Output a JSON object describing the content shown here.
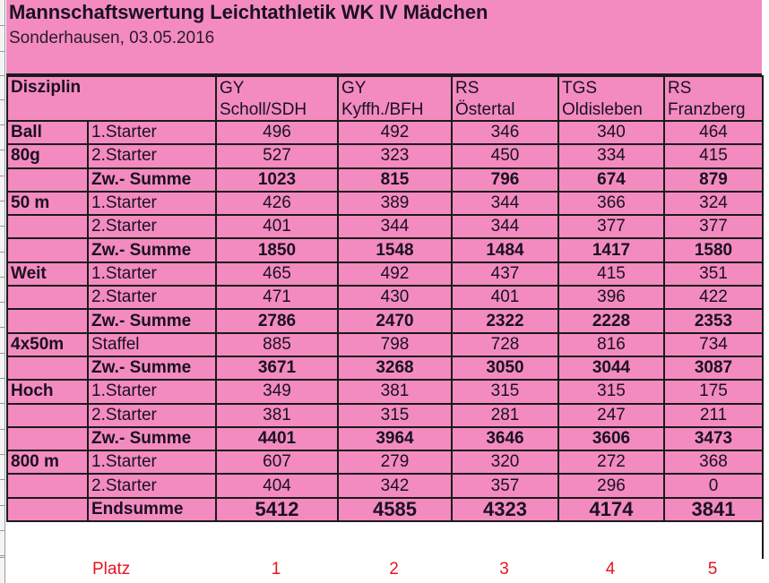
{
  "header": {
    "title": "Mannschaftswertung Leichtathletik WK IV Mädchen",
    "subtitle": "Sonderhausen, 03.05.2016"
  },
  "columns": {
    "discipline_label": "Disziplin",
    "teams": [
      {
        "line1": "GY",
        "line2": "Scholl/SDH"
      },
      {
        "line1": "GY",
        "line2": "Kyffh./BFH"
      },
      {
        "line1": "RS",
        "line2": "Östertal"
      },
      {
        "line1": "TGS",
        "line2": "Oldisleben"
      },
      {
        "line1": "RS",
        "line2": "Franzberg"
      }
    ]
  },
  "rows": [
    {
      "discipline": "Ball",
      "label": "1.Starter",
      "bold": false,
      "values": [
        "496",
        "492",
        "346",
        "340",
        "464"
      ]
    },
    {
      "discipline": "80g",
      "label": "2.Starter",
      "bold": false,
      "values": [
        "527",
        "323",
        "450",
        "334",
        "415"
      ]
    },
    {
      "discipline": "",
      "label": "Zw.- Summe",
      "bold": true,
      "values": [
        "1023",
        "815",
        "796",
        "674",
        "879"
      ]
    },
    {
      "discipline": "50 m",
      "label": "1.Starter",
      "bold": false,
      "values": [
        "426",
        "389",
        "344",
        "366",
        "324"
      ]
    },
    {
      "discipline": "",
      "label": "2.Starter",
      "bold": false,
      "values": [
        "401",
        "344",
        "344",
        "377",
        "377"
      ]
    },
    {
      "discipline": "",
      "label": "Zw.- Summe",
      "bold": true,
      "values": [
        "1850",
        "1548",
        "1484",
        "1417",
        "1580"
      ]
    },
    {
      "discipline": "Weit",
      "label": "1.Starter",
      "bold": false,
      "values": [
        "465",
        "492",
        "437",
        "415",
        "351"
      ]
    },
    {
      "discipline": "",
      "label": "2.Starter",
      "bold": false,
      "values": [
        "471",
        "430",
        "401",
        "396",
        "422"
      ]
    },
    {
      "discipline": "",
      "label": "Zw.- Summe",
      "bold": true,
      "values": [
        "2786",
        "2470",
        "2322",
        "2228",
        "2353"
      ]
    },
    {
      "discipline": "4x50m",
      "label": "Staffel",
      "bold": false,
      "values": [
        "885",
        "798",
        "728",
        "816",
        "734"
      ]
    },
    {
      "discipline": "",
      "label": "Zw.- Summe",
      "bold": true,
      "values": [
        "3671",
        "3268",
        "3050",
        "3044",
        "3087"
      ]
    },
    {
      "discipline": "Hoch",
      "label": "1.Starter",
      "bold": false,
      "values": [
        "349",
        "381",
        "315",
        "315",
        "175"
      ]
    },
    {
      "discipline": "",
      "label": "2.Starter",
      "bold": false,
      "values": [
        "381",
        "315",
        "281",
        "247",
        "211"
      ]
    },
    {
      "discipline": "",
      "label": "Zw.- Summe",
      "bold": true,
      "values": [
        "4401",
        "3964",
        "3646",
        "3606",
        "3473"
      ]
    },
    {
      "discipline": "800 m",
      "label": "1.Starter",
      "bold": false,
      "values": [
        "607",
        "279",
        "320",
        "272",
        "368"
      ]
    },
    {
      "discipline": "",
      "label": "2.Starter",
      "bold": false,
      "values": [
        "404",
        "342",
        "357",
        "296",
        "0"
      ]
    },
    {
      "discipline": "",
      "label": "Endsumme",
      "bold": true,
      "big": true,
      "values": [
        "5412",
        "4585",
        "4323",
        "4174",
        "3841"
      ]
    }
  ],
  "ranking": {
    "label": "Platz",
    "values": [
      "1",
      "2",
      "3",
      "4",
      "5"
    ]
  },
  "colors": {
    "cell_fill": "#f38bc0",
    "rank_text": "#e8141e",
    "grid_line": "#1a1a1a"
  }
}
